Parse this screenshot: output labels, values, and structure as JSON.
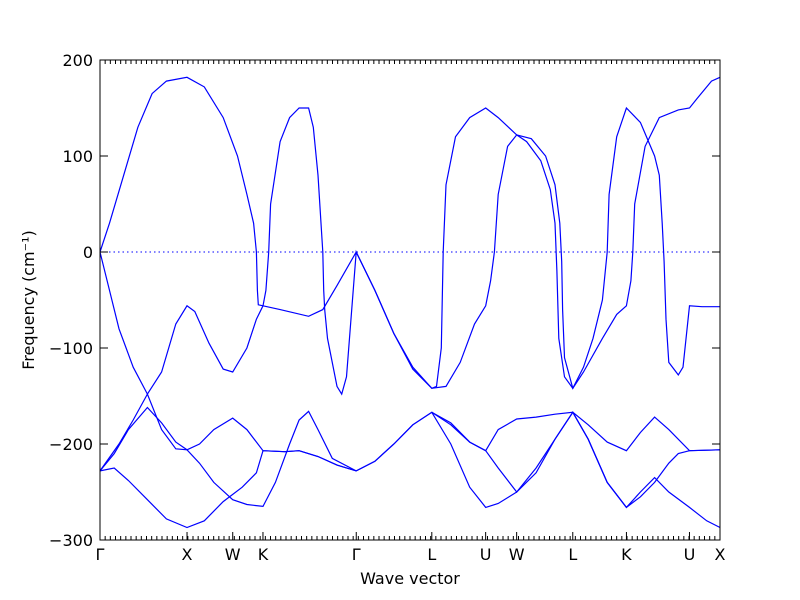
{
  "chart_data": {
    "type": "line",
    "title": "",
    "xlabel": "Wave vector",
    "ylabel": "Frequency (cm⁻¹)",
    "ylim": [
      -300,
      200
    ],
    "yticks": [
      200,
      100,
      0,
      -100,
      -200,
      -300
    ],
    "ytick_labels": [
      "200",
      "100",
      "0",
      "−100",
      "−200",
      "−300"
    ],
    "xlim": [
      0,
      6.54
    ],
    "xticks": [
      {
        "x": 0.0,
        "label": "Γ"
      },
      {
        "x": 0.918,
        "label": "X"
      },
      {
        "x": 1.4,
        "label": "W"
      },
      {
        "x": 1.719,
        "label": "K"
      },
      {
        "x": 2.703,
        "label": "Γ"
      },
      {
        "x": 3.5,
        "label": "L"
      },
      {
        "x": 4.068,
        "label": "U"
      },
      {
        "x": 4.395,
        "label": "W"
      },
      {
        "x": 4.987,
        "label": "L"
      },
      {
        "x": 5.553,
        "label": "K"
      },
      {
        "x": 6.218,
        "label": "U"
      },
      {
        "x": 6.54,
        "label": "X"
      }
    ],
    "grid": false,
    "zero_line": true,
    "color": "#0000ff",
    "series": [
      {
        "points": [
          [
            0,
            0
          ],
          [
            0.1,
            30
          ],
          [
            0.25,
            80
          ],
          [
            0.4,
            130
          ],
          [
            0.55,
            165
          ],
          [
            0.7,
            178
          ],
          [
            0.918,
            182
          ],
          [
            1.1,
            172
          ],
          [
            1.3,
            140
          ],
          [
            1.45,
            100
          ],
          [
            1.55,
            60
          ],
          [
            1.62,
            30
          ],
          [
            1.65,
            0
          ],
          [
            1.66,
            -40
          ],
          [
            1.67,
            -55
          ],
          [
            1.719,
            -56
          ],
          [
            1.9,
            -60
          ],
          [
            2.2,
            -67
          ],
          [
            2.35,
            -60
          ],
          [
            2.5,
            -35
          ],
          [
            2.703,
            0
          ],
          [
            2.9,
            -40
          ],
          [
            3.1,
            -85
          ],
          [
            3.3,
            -120
          ],
          [
            3.5,
            -142
          ],
          [
            3.65,
            -140
          ],
          [
            3.8,
            -115
          ],
          [
            3.95,
            -75
          ],
          [
            4.068,
            -56
          ],
          [
            4.12,
            -30
          ],
          [
            4.16,
            0
          ],
          [
            4.2,
            60
          ],
          [
            4.3,
            110
          ],
          [
            4.395,
            122
          ],
          [
            4.55,
            118
          ],
          [
            4.7,
            100
          ],
          [
            4.8,
            70
          ],
          [
            4.85,
            30
          ],
          [
            4.87,
            -10
          ],
          [
            4.88,
            -60
          ],
          [
            4.9,
            -110
          ],
          [
            4.987,
            -142
          ],
          [
            5.1,
            -125
          ],
          [
            5.3,
            -90
          ],
          [
            5.45,
            -65
          ],
          [
            5.553,
            -56
          ],
          [
            5.6,
            -30
          ],
          [
            5.62,
            0
          ],
          [
            5.64,
            50
          ],
          [
            5.75,
            110
          ],
          [
            5.9,
            140
          ],
          [
            6.1,
            148
          ],
          [
            6.218,
            150
          ],
          [
            6.3,
            160
          ],
          [
            6.45,
            178
          ],
          [
            6.54,
            182
          ]
        ]
      },
      {
        "points": [
          [
            0,
            0
          ],
          [
            0.1,
            -40
          ],
          [
            0.2,
            -80
          ],
          [
            0.35,
            -120
          ],
          [
            0.5,
            -148
          ],
          [
            0.65,
            -125
          ],
          [
            0.8,
            -75
          ],
          [
            0.918,
            -56
          ],
          [
            1.0,
            -62
          ],
          [
            1.15,
            -95
          ],
          [
            1.3,
            -122
          ],
          [
            1.4,
            -125
          ],
          [
            1.55,
            -100
          ],
          [
            1.65,
            -70
          ],
          [
            1.719,
            -56
          ],
          [
            1.75,
            -40
          ],
          [
            1.78,
            0
          ],
          [
            1.8,
            50
          ],
          [
            1.9,
            115
          ],
          [
            2.0,
            140
          ],
          [
            2.1,
            150
          ],
          [
            2.2,
            150
          ],
          [
            2.25,
            130
          ],
          [
            2.3,
            80
          ],
          [
            2.35,
            0
          ],
          [
            2.36,
            -40
          ],
          [
            2.37,
            -60
          ],
          [
            2.4,
            -90
          ],
          [
            2.5,
            -140
          ],
          [
            2.55,
            -148
          ],
          [
            2.6,
            -130
          ],
          [
            2.703,
            0
          ],
          [
            2.9,
            -40
          ],
          [
            3.1,
            -85
          ],
          [
            3.3,
            -122
          ],
          [
            3.5,
            -142
          ],
          [
            3.55,
            -140
          ],
          [
            3.6,
            -100
          ],
          [
            3.62,
            0
          ],
          [
            3.65,
            70
          ],
          [
            3.75,
            120
          ],
          [
            3.9,
            140
          ],
          [
            4.068,
            150
          ],
          [
            4.2,
            140
          ],
          [
            4.395,
            122
          ],
          [
            4.5,
            115
          ],
          [
            4.65,
            95
          ],
          [
            4.75,
            65
          ],
          [
            4.8,
            30
          ],
          [
            4.82,
            -20
          ],
          [
            4.84,
            -90
          ],
          [
            4.9,
            -130
          ],
          [
            4.987,
            -142
          ],
          [
            5.1,
            -120
          ],
          [
            5.2,
            -90
          ],
          [
            5.3,
            -50
          ],
          [
            5.35,
            0
          ],
          [
            5.37,
            60
          ],
          [
            5.45,
            120
          ],
          [
            5.553,
            150
          ],
          [
            5.7,
            135
          ],
          [
            5.85,
            100
          ],
          [
            5.9,
            80
          ],
          [
            5.93,
            30
          ],
          [
            5.95,
            -10
          ],
          [
            5.97,
            -70
          ],
          [
            6.0,
            -115
          ],
          [
            6.1,
            -128
          ],
          [
            6.15,
            -120
          ],
          [
            6.218,
            -56
          ],
          [
            6.35,
            -57
          ],
          [
            6.54,
            -57
          ]
        ]
      },
      {
        "points": [
          [
            0,
            -228
          ],
          [
            0.15,
            -210
          ],
          [
            0.3,
            -185
          ],
          [
            0.5,
            -162
          ],
          [
            0.65,
            -178
          ],
          [
            0.8,
            -198
          ],
          [
            0.918,
            -206
          ],
          [
            1.05,
            -200
          ],
          [
            1.2,
            -185
          ],
          [
            1.4,
            -173
          ],
          [
            1.55,
            -185
          ],
          [
            1.719,
            -207
          ],
          [
            1.95,
            -208
          ],
          [
            2.1,
            -207
          ],
          [
            2.3,
            -213
          ],
          [
            2.5,
            -222
          ],
          [
            2.703,
            -228
          ],
          [
            2.9,
            -218
          ],
          [
            3.1,
            -200
          ],
          [
            3.3,
            -180
          ],
          [
            3.5,
            -167
          ],
          [
            3.7,
            -178
          ],
          [
            3.9,
            -198
          ],
          [
            4.068,
            -207
          ],
          [
            4.2,
            -185
          ],
          [
            4.395,
            -174
          ],
          [
            4.6,
            -172
          ],
          [
            4.8,
            -169
          ],
          [
            4.987,
            -167
          ],
          [
            5.15,
            -180
          ],
          [
            5.35,
            -198
          ],
          [
            5.553,
            -207
          ],
          [
            5.7,
            -188
          ],
          [
            5.85,
            -172
          ],
          [
            6.0,
            -185
          ],
          [
            6.218,
            -207
          ],
          [
            6.54,
            -206
          ]
        ]
      },
      {
        "points": [
          [
            0,
            -228
          ],
          [
            0.15,
            -225
          ],
          [
            0.3,
            -238
          ],
          [
            0.5,
            -258
          ],
          [
            0.7,
            -278
          ],
          [
            0.918,
            -287
          ],
          [
            1.1,
            -280
          ],
          [
            1.3,
            -260
          ],
          [
            1.5,
            -245
          ],
          [
            1.65,
            -230
          ],
          [
            1.719,
            -207
          ],
          [
            1.95,
            -208
          ],
          [
            2.1,
            -207
          ],
          [
            2.3,
            -213
          ],
          [
            2.5,
            -222
          ],
          [
            2.703,
            -228
          ],
          [
            2.9,
            -218
          ],
          [
            3.1,
            -200
          ],
          [
            3.3,
            -180
          ],
          [
            3.5,
            -167
          ],
          [
            3.7,
            -200
          ],
          [
            3.9,
            -245
          ],
          [
            4.068,
            -266
          ],
          [
            4.2,
            -262
          ],
          [
            4.395,
            -250
          ],
          [
            4.6,
            -230
          ],
          [
            4.8,
            -195
          ],
          [
            4.987,
            -167
          ],
          [
            5.15,
            -195
          ],
          [
            5.35,
            -240
          ],
          [
            5.553,
            -266
          ],
          [
            5.7,
            -255
          ],
          [
            5.85,
            -240
          ],
          [
            6.0,
            -220
          ],
          [
            6.1,
            -210
          ],
          [
            6.218,
            -207
          ],
          [
            6.54,
            -206
          ]
        ]
      },
      {
        "points": [
          [
            0,
            -228
          ],
          [
            0.2,
            -200
          ],
          [
            0.35,
            -175
          ],
          [
            0.5,
            -148
          ],
          [
            0.65,
            -185
          ],
          [
            0.8,
            -205
          ],
          [
            0.918,
            -206
          ],
          [
            1.05,
            -220
          ],
          [
            1.2,
            -240
          ],
          [
            1.4,
            -258
          ],
          [
            1.55,
            -263
          ],
          [
            1.719,
            -265
          ],
          [
            1.85,
            -240
          ],
          [
            2.0,
            -200
          ],
          [
            2.1,
            -175
          ],
          [
            2.2,
            -166
          ],
          [
            2.3,
            -185
          ],
          [
            2.45,
            -215
          ],
          [
            2.703,
            -228
          ]
        ]
      },
      {
        "points": [
          [
            3.5,
            -167
          ],
          [
            3.7,
            -180
          ],
          [
            3.9,
            -198
          ],
          [
            4.068,
            -207
          ],
          [
            4.2,
            -225
          ],
          [
            4.395,
            -250
          ],
          [
            4.6,
            -225
          ],
          [
            4.8,
            -195
          ],
          [
            4.987,
            -167
          ],
          [
            5.15,
            -195
          ],
          [
            5.35,
            -240
          ],
          [
            5.553,
            -266
          ],
          [
            5.7,
            -250
          ],
          [
            5.85,
            -235
          ],
          [
            6.0,
            -250
          ],
          [
            6.218,
            -266
          ],
          [
            6.4,
            -280
          ],
          [
            6.54,
            -287
          ]
        ]
      }
    ]
  }
}
